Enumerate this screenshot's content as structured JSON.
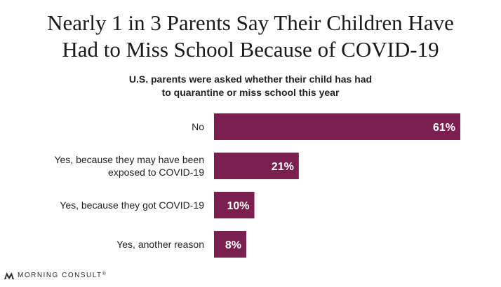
{
  "brand": {
    "name": "MORNING CONSULT",
    "trademark": "®"
  },
  "chart_data": {
    "type": "bar",
    "orientation": "horizontal",
    "title": "Nearly 1 in 3 Parents Say Their Children Have Had to Miss School Because of COVID-19",
    "title_lines": [
      "Nearly 1 in 3 Parents Say Their Children Have",
      "Had to Miss School Because of COVID-19"
    ],
    "subtitle_lines": [
      "U.S. parents were asked whether their child has had",
      "to quarantine or miss school this year"
    ],
    "categories": [
      [
        "No"
      ],
      [
        "Yes, because they may have been",
        "exposed to COVID-19"
      ],
      [
        "Yes, because they got COVID-19"
      ],
      [
        "Yes, another reason"
      ]
    ],
    "values": [
      61,
      21,
      10,
      8
    ],
    "value_labels": [
      "61%",
      "21%",
      "10%",
      "8%"
    ],
    "unit": "%",
    "xlim": [
      0,
      61
    ],
    "bar_color": "#7b1f4e",
    "label_color": "#ffffff",
    "grid": false,
    "legend": false
  }
}
